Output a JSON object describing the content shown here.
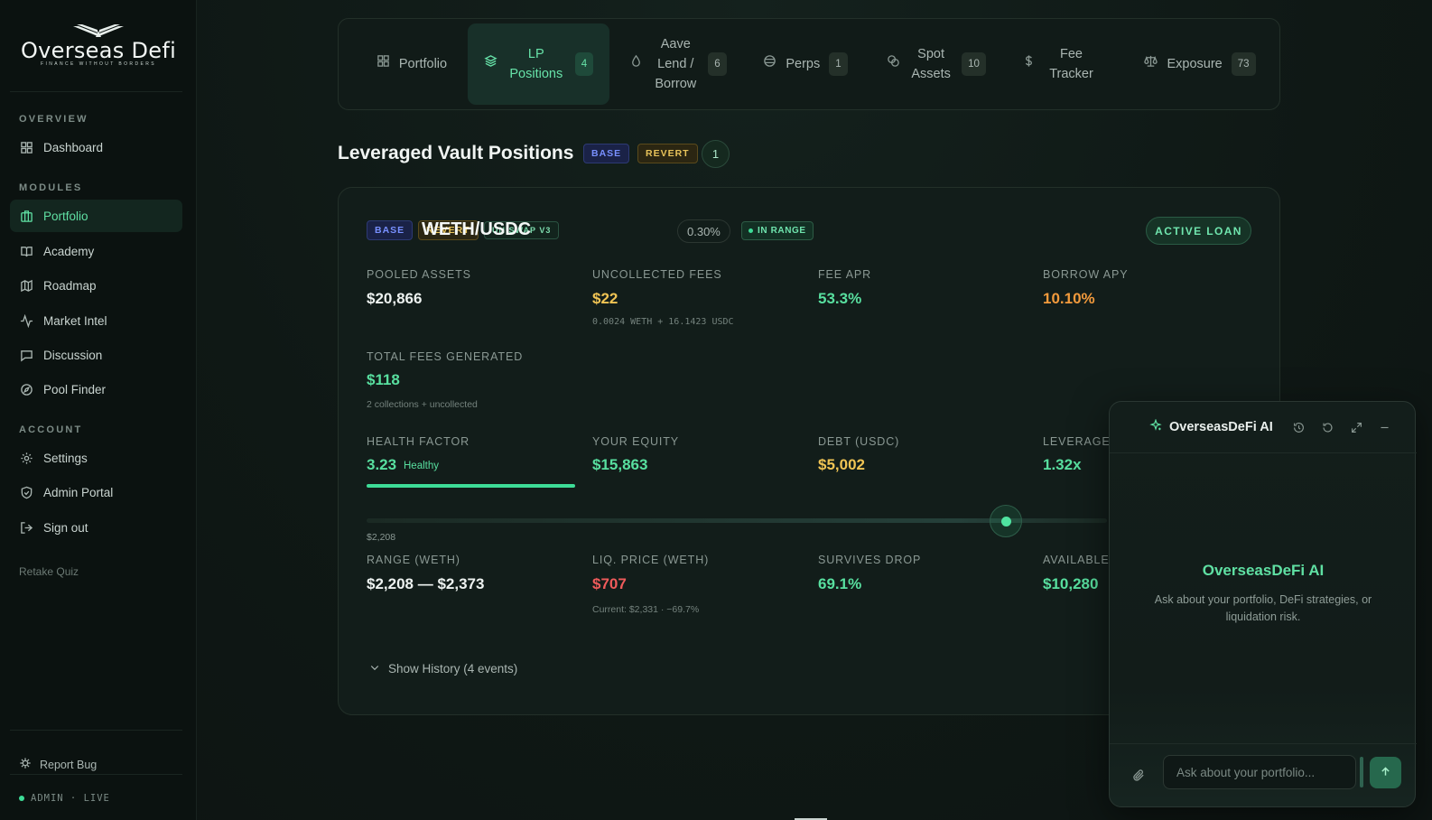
{
  "brand": {
    "name": "Overseas Defi",
    "tagline": "FINANCE WITHOUT BORDERS"
  },
  "sidebar": {
    "sections": {
      "overview": "OVERVIEW",
      "modules": "MODULES",
      "account": "ACCOUNT"
    },
    "overview_items": [
      {
        "label": "Dashboard",
        "icon": "grid-icon"
      }
    ],
    "module_items": [
      {
        "label": "Portfolio",
        "icon": "briefcase-icon",
        "active": true
      },
      {
        "label": "Academy",
        "icon": "book-icon"
      },
      {
        "label": "Roadmap",
        "icon": "map-icon"
      },
      {
        "label": "Market Intel",
        "icon": "activity-icon"
      },
      {
        "label": "Discussion",
        "icon": "message-icon"
      },
      {
        "label": "Pool Finder",
        "icon": "compass-icon"
      }
    ],
    "account_items": [
      {
        "label": "Settings",
        "icon": "gear-icon"
      },
      {
        "label": "Admin Portal",
        "icon": "shield-icon"
      },
      {
        "label": "Sign out",
        "icon": "logout-icon"
      }
    ],
    "retake": "Retake Quiz",
    "report_bug": "Report Bug",
    "status": "ADMIN · LIVE"
  },
  "tabs": [
    {
      "label": "Portfolio",
      "badge": "",
      "icon": "grid-icon"
    },
    {
      "label": "LP Positions",
      "badge": "4",
      "icon": "layers-icon",
      "active": true
    },
    {
      "label": "Aave Lend / Borrow",
      "badge": "6",
      "icon": "drop-icon"
    },
    {
      "label": "Perps",
      "badge": "1",
      "icon": "chart-circle-icon"
    },
    {
      "label": "Spot Assets",
      "badge": "10",
      "icon": "coins-icon"
    },
    {
      "label": "Fee Tracker",
      "badge": "",
      "icon": "dollar-icon"
    },
    {
      "label": "Exposure",
      "badge": "73",
      "icon": "scale-icon"
    }
  ],
  "section": {
    "title": "Leveraged Vault Positions",
    "chips": [
      "BASE",
      "REVERT"
    ],
    "count": "1"
  },
  "position": {
    "chips": [
      "BASE",
      "REVERT",
      "UNISWAP V3"
    ],
    "pair": "WETH/USDC",
    "fee_tier": "0.30%",
    "range_status": "IN RANGE",
    "loan_status": "ACTIVE LOAN",
    "pooled_assets": {
      "label": "POOLED ASSETS",
      "value": "$20,866"
    },
    "uncollected_fees": {
      "label": "UNCOLLECTED FEES",
      "value": "$22",
      "sub": "0.0024 WETH + 16.1423 USDC"
    },
    "fee_apr": {
      "label": "FEE APR",
      "value": "53.3%"
    },
    "borrow_apy": {
      "label": "BORROW APY",
      "value": "10.10%"
    },
    "total_fees": {
      "label": "TOTAL FEES GENERATED",
      "value": "$118",
      "sub": "2 collections + uncollected"
    },
    "health_factor": {
      "label": "HEALTH FACTOR",
      "value": "3.23",
      "status": "Healthy"
    },
    "equity": {
      "label": "YOUR EQUITY",
      "value": "$15,863"
    },
    "debt": {
      "label": "DEBT (USDC)",
      "value": "$5,002"
    },
    "leverage": {
      "label": "LEVERAGE",
      "value": "1.32x"
    },
    "range_low_label": "$2,208",
    "range": {
      "label": "RANGE (WETH)",
      "value": "$2,208 — $2,373"
    },
    "liq_price": {
      "label": "LIQ. PRICE (WETH)",
      "value": "$707",
      "sub": "Current: $2,331 · −69.7%"
    },
    "survives_drop": {
      "label": "SURVIVES DROP",
      "value": "69.1%"
    },
    "available": {
      "label": "AVAILABLE",
      "value": "$10,280"
    },
    "history": "Show History (4 events)"
  },
  "ai": {
    "title": "OverseasDeFi AI",
    "empty_title": "OverseasDeFi AI",
    "empty_sub": "Ask about your portfolio, DeFi strategies, or liquidation risk.",
    "input_placeholder": "Ask about your portfolio..."
  },
  "colors": {
    "accent": "#3ddc97",
    "warning": "#f0c454",
    "danger": "#ef5b5b",
    "orange": "#f29a3c"
  }
}
